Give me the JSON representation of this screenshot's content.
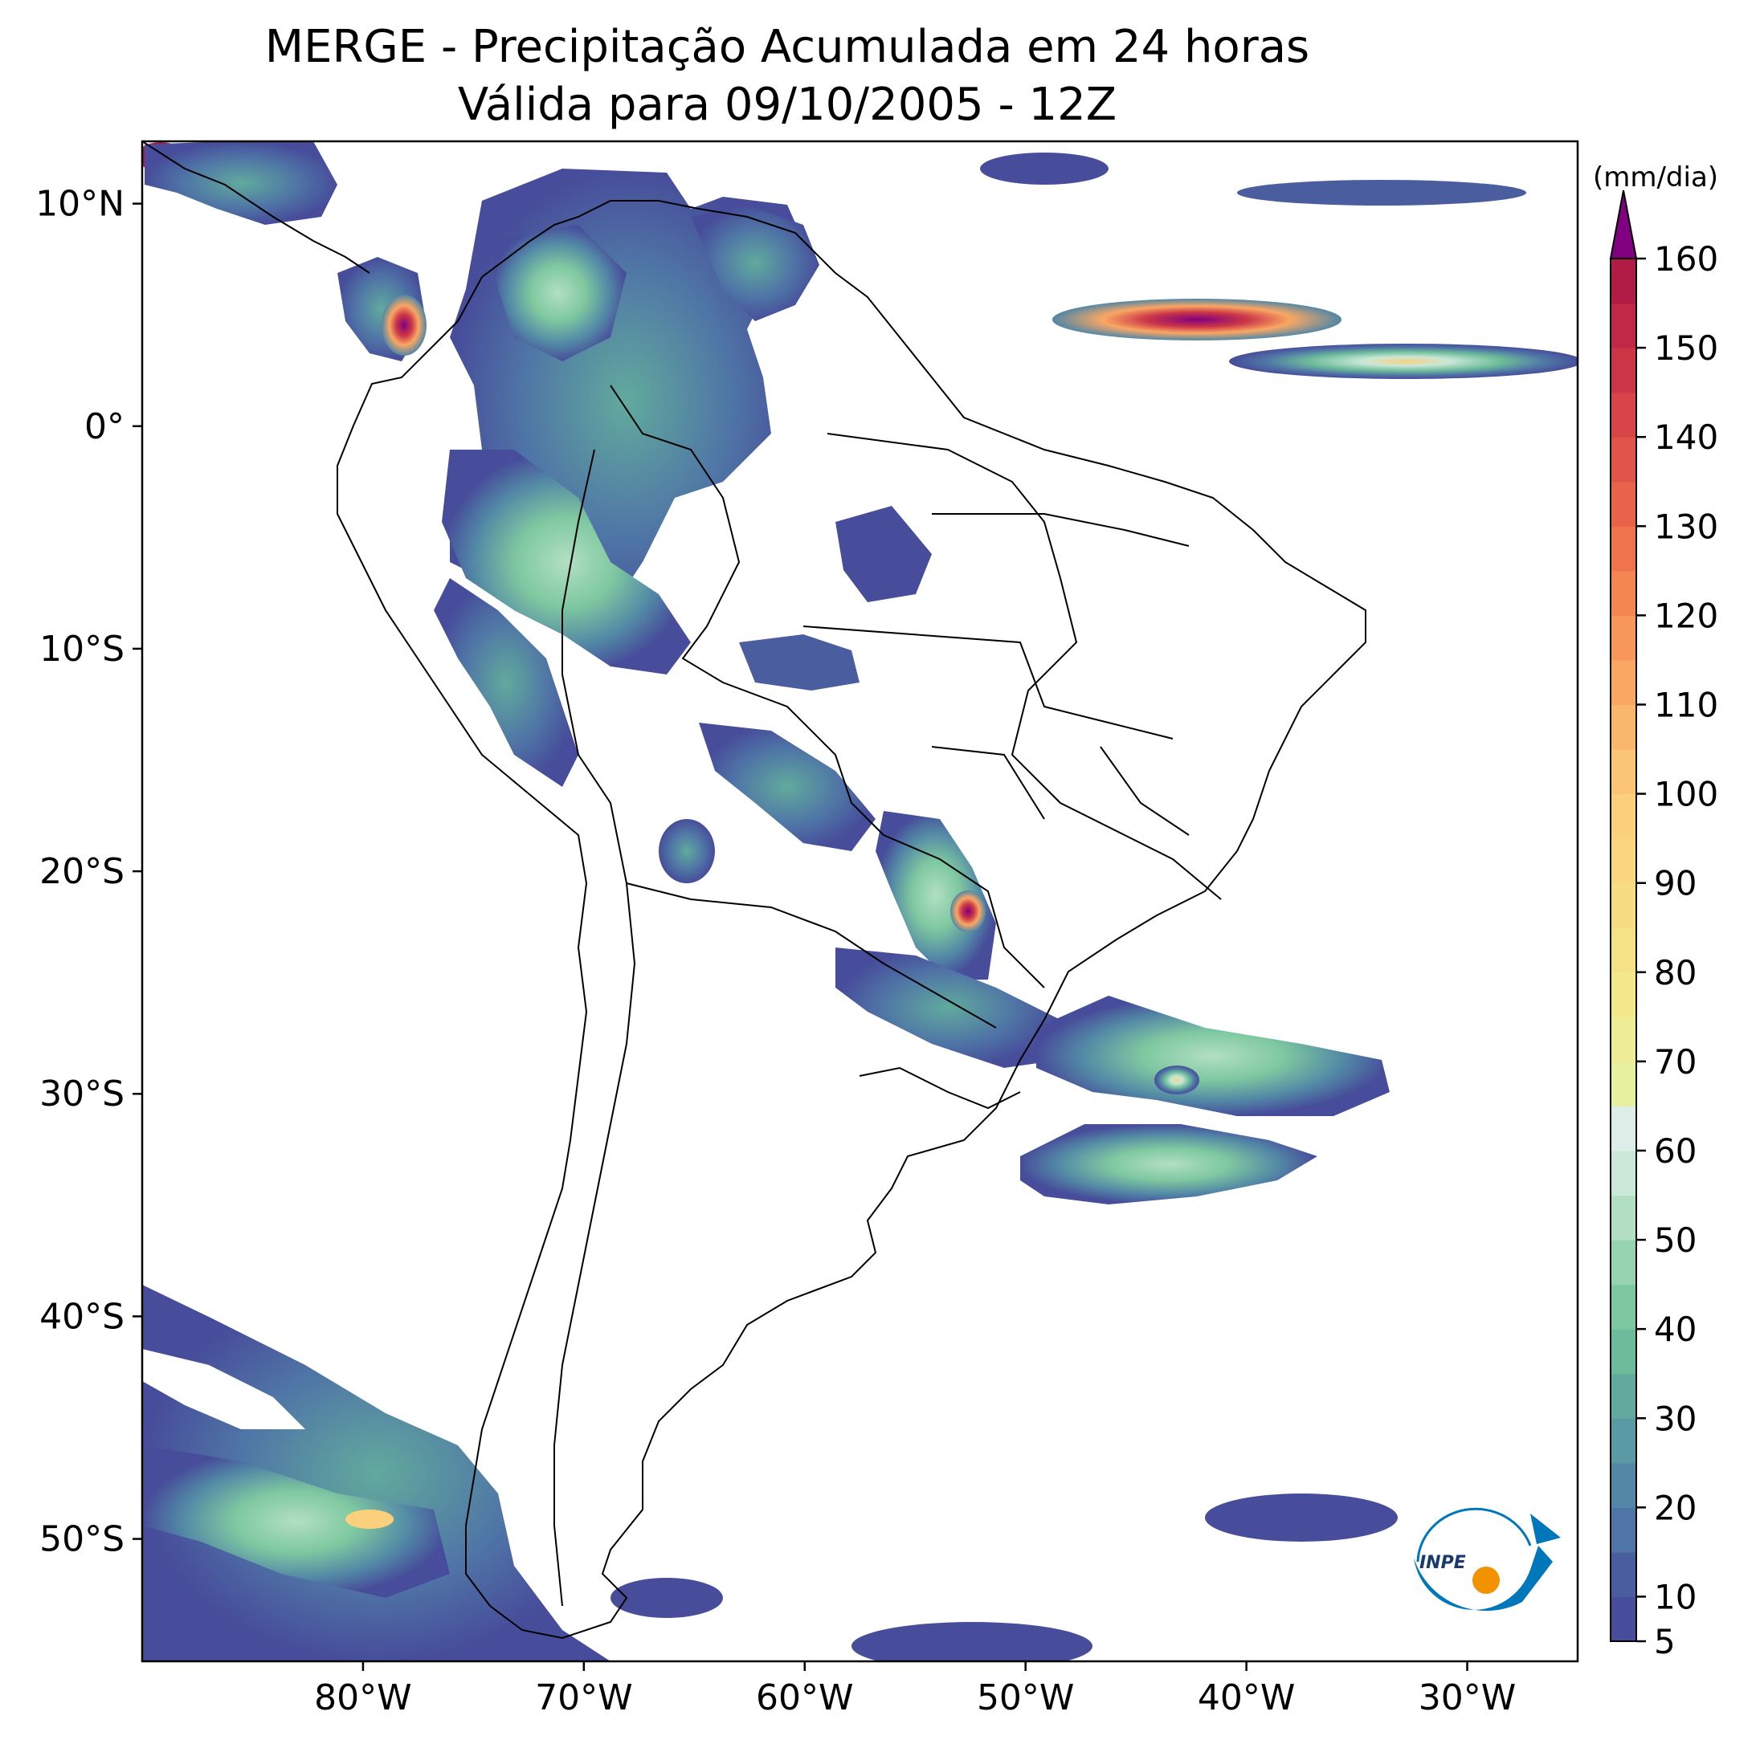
{
  "title": {
    "line1": "MERGE - Precipitação Acumulada em 24 horas",
    "line2": "Válida para 09/10/2005 - 12Z"
  },
  "map": {
    "projection": "plate-carree",
    "lon_range": [
      -90,
      -25
    ],
    "lat_range": [
      -55.5,
      12.8
    ],
    "lon_ticks": [
      {
        "value": -80,
        "label": "80°W"
      },
      {
        "value": -70,
        "label": "70°W"
      },
      {
        "value": -60,
        "label": "60°W"
      },
      {
        "value": -50,
        "label": "50°W"
      },
      {
        "value": -40,
        "label": "40°W"
      },
      {
        "value": -30,
        "label": "30°W"
      }
    ],
    "lat_ticks": [
      {
        "value": 10,
        "label": "10°N"
      },
      {
        "value": 0,
        "label": "0°"
      },
      {
        "value": -10,
        "label": "10°S"
      },
      {
        "value": -20,
        "label": "20°S"
      },
      {
        "value": -30,
        "label": "30°S"
      },
      {
        "value": -40,
        "label": "40°S"
      },
      {
        "value": -50,
        "label": "50°S"
      }
    ]
  },
  "colorbar": {
    "unit": "(mm/dia)",
    "min": 5,
    "max": 160,
    "extend": "max",
    "tick_labels": [
      "5",
      "10",
      "20",
      "30",
      "40",
      "50",
      "60",
      "70",
      "80",
      "90",
      "100",
      "110",
      "120",
      "130",
      "140",
      "150",
      "160"
    ],
    "bands": [
      {
        "from": 5,
        "to": 10,
        "color": "#474d9a"
      },
      {
        "from": 10,
        "to": 15,
        "color": "#4a5e9f"
      },
      {
        "from": 15,
        "to": 20,
        "color": "#4f74a6"
      },
      {
        "from": 20,
        "to": 25,
        "color": "#5287a6"
      },
      {
        "from": 25,
        "to": 30,
        "color": "#5a9aa5"
      },
      {
        "from": 30,
        "to": 35,
        "color": "#61aa9d"
      },
      {
        "from": 35,
        "to": 40,
        "color": "#6dbb9a"
      },
      {
        "from": 40,
        "to": 45,
        "color": "#7ec8a0"
      },
      {
        "from": 45,
        "to": 50,
        "color": "#97d3b1"
      },
      {
        "from": 50,
        "to": 55,
        "color": "#b2dfc3"
      },
      {
        "from": 55,
        "to": 60,
        "color": "#c9e8d7"
      },
      {
        "from": 60,
        "to": 65,
        "color": "#ddeee9"
      },
      {
        "from": 65,
        "to": 70,
        "color": "#e6f09f"
      },
      {
        "from": 70,
        "to": 75,
        "color": "#eeed96"
      },
      {
        "from": 75,
        "to": 80,
        "color": "#f3e98c"
      },
      {
        "from": 80,
        "to": 85,
        "color": "#f5e285"
      },
      {
        "from": 85,
        "to": 90,
        "color": "#f7dc82"
      },
      {
        "from": 90,
        "to": 95,
        "color": "#f9d67f"
      },
      {
        "from": 95,
        "to": 100,
        "color": "#fbd07d"
      },
      {
        "from": 100,
        "to": 105,
        "color": "#fcc476"
      },
      {
        "from": 105,
        "to": 110,
        "color": "#fbb66d"
      },
      {
        "from": 110,
        "to": 115,
        "color": "#f9a763"
      },
      {
        "from": 115,
        "to": 120,
        "color": "#f7975a"
      },
      {
        "from": 120,
        "to": 125,
        "color": "#f48652"
      },
      {
        "from": 125,
        "to": 130,
        "color": "#f0744b"
      },
      {
        "from": 130,
        "to": 135,
        "color": "#e8634a"
      },
      {
        "from": 135,
        "to": 140,
        "color": "#e05449"
      },
      {
        "from": 140,
        "to": 145,
        "color": "#d74548"
      },
      {
        "from": 145,
        "to": 150,
        "color": "#cb3647"
      },
      {
        "from": 150,
        "to": 155,
        "color": "#bf2846"
      },
      {
        "from": 155,
        "to": 160,
        "color": "#b01c45"
      }
    ],
    "over_color": "#800080"
  },
  "logo": {
    "text": "INPE"
  }
}
